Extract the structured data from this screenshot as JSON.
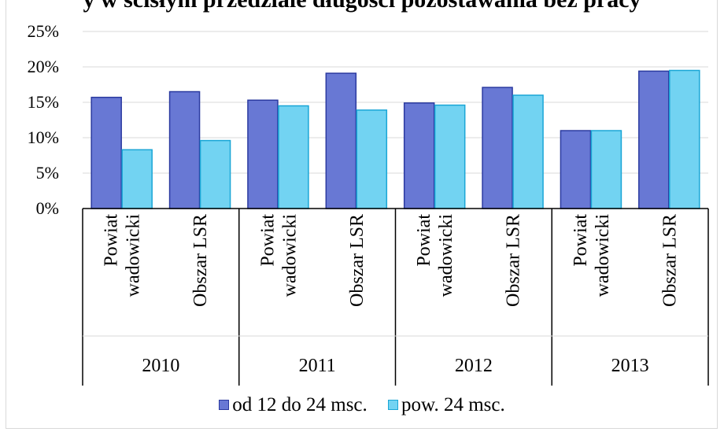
{
  "chart_data": {
    "type": "bar",
    "title": "y w ścisłym przedziale długości pozostawania bez pracy",
    "groups": [
      "2010",
      "2011",
      "2012",
      "2013"
    ],
    "categories": [
      [
        "Powiat",
        "wadowicki"
      ],
      [
        "Obszar LSR"
      ],
      [
        "Powiat",
        "wadowicki"
      ],
      [
        "Obszar LSR"
      ],
      [
        "Powiat",
        "wadowicki"
      ],
      [
        "Obszar LSR"
      ],
      [
        "Powiat",
        "wadowicki"
      ],
      [
        "Obszar LSR"
      ]
    ],
    "series": [
      {
        "name": "od 12 do 24 msc.",
        "color": "#6878d4",
        "values": [
          15.7,
          16.5,
          15.3,
          19.1,
          14.9,
          17.1,
          11.0,
          19.4
        ]
      },
      {
        "name": "pow. 24 msc.",
        "color": "#72d3f2",
        "values": [
          8.3,
          9.6,
          14.5,
          13.9,
          14.6,
          16.0,
          11.0,
          19.5
        ]
      }
    ],
    "ylim": [
      0,
      25
    ],
    "yticks": [
      "0%",
      "5%",
      "10%",
      "15%",
      "20%",
      "25%"
    ],
    "grid": true,
    "legend_position": "bottom"
  }
}
